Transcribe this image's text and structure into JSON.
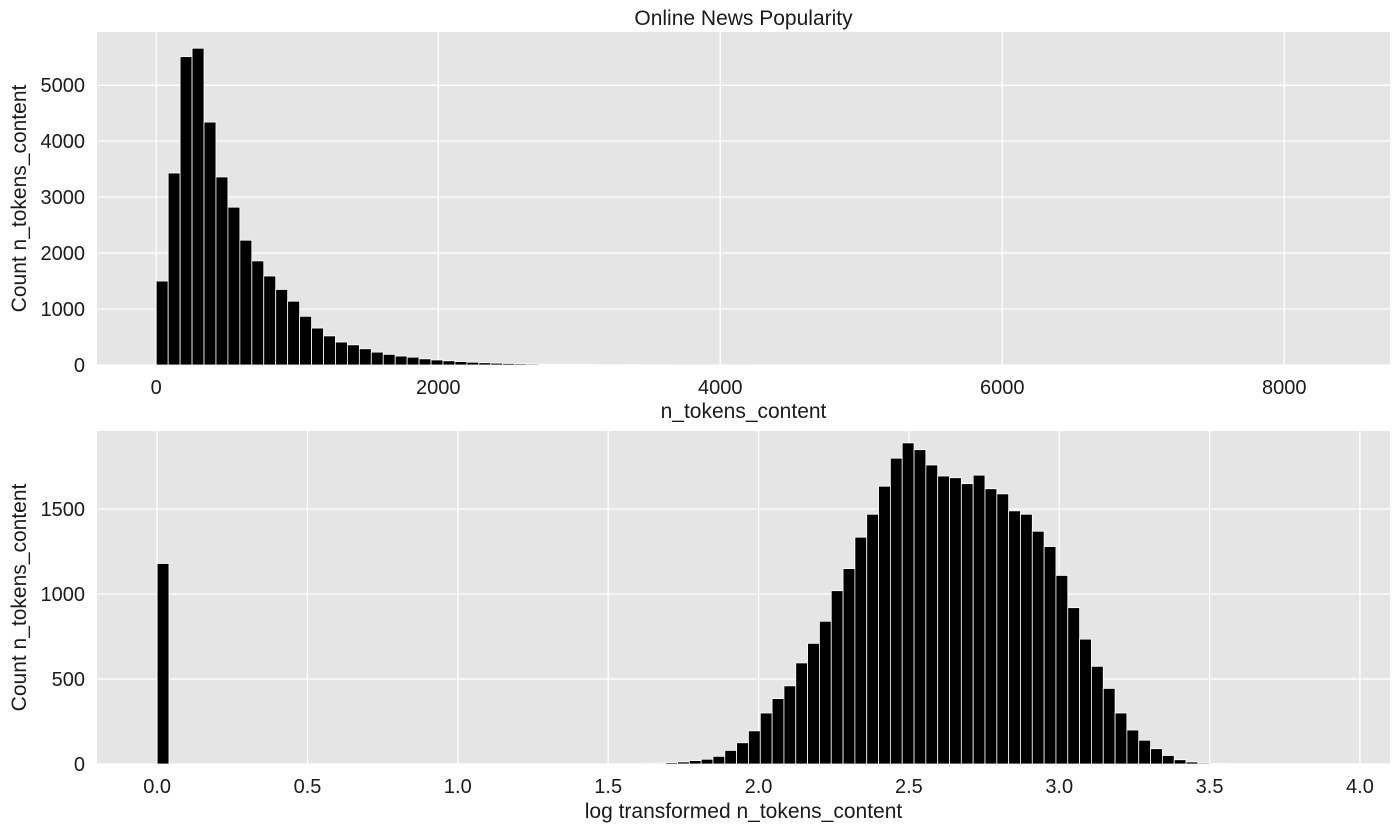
{
  "chart_data": [
    {
      "type": "bar",
      "title": "Online News Popularity",
      "xlabel": "n_tokens_content",
      "ylabel": "Count  n_tokens_content",
      "xlim": [
        -420,
        8750
      ],
      "ylim": [
        0,
        5950
      ],
      "xticks": [
        0,
        2000,
        4000,
        6000,
        8000
      ],
      "yticks": [
        0,
        1000,
        2000,
        3000,
        4000,
        5000
      ],
      "grid": true,
      "bin_start": 0,
      "bin_width": 84.74,
      "values": [
        1500,
        3430,
        5510,
        5660,
        4340,
        3360,
        2820,
        2230,
        1860,
        1590,
        1350,
        1140,
        870,
        660,
        520,
        410,
        360,
        290,
        230,
        190,
        160,
        140,
        110,
        90,
        75,
        62,
        50,
        40,
        33,
        27,
        22,
        18,
        14,
        11,
        9,
        7,
        6,
        5,
        4,
        3,
        3,
        2,
        2,
        1,
        1,
        1,
        1,
        1,
        1,
        1
      ]
    },
    {
      "type": "bar",
      "title": "",
      "xlabel": "log transformed  n_tokens_content",
      "ylabel": "Count  n_tokens_content",
      "xlim": [
        -0.2,
        4.1
      ],
      "ylim": [
        0,
        1960
      ],
      "xticks": [
        0.0,
        0.5,
        1.0,
        1.5,
        2.0,
        2.5,
        3.0,
        3.5,
        4.0
      ],
      "yticks": [
        0,
        500,
        1000,
        1500
      ],
      "grid": true,
      "bin_start": 0.0,
      "bin_width": 0.03933,
      "values": [
        1180,
        0,
        0,
        0,
        0,
        0,
        0,
        0,
        0,
        0,
        0,
        0,
        0,
        0,
        0,
        0,
        0,
        0,
        0,
        0,
        0,
        0,
        0,
        0,
        0,
        0,
        0,
        0,
        0,
        0,
        0,
        0,
        0,
        0,
        0,
        0,
        0,
        0,
        0,
        0,
        1,
        2,
        5,
        8,
        12,
        20,
        28,
        45,
        80,
        125,
        195,
        300,
        385,
        460,
        595,
        710,
        840,
        1020,
        1150,
        1335,
        1470,
        1635,
        1800,
        1890,
        1850,
        1760,
        1695,
        1685,
        1650,
        1700,
        1620,
        1590,
        1490,
        1470,
        1370,
        1280,
        1110,
        920,
        735,
        575,
        445,
        300,
        200,
        140,
        90,
        50,
        25,
        12,
        6,
        3,
        2,
        1
      ]
    }
  ]
}
